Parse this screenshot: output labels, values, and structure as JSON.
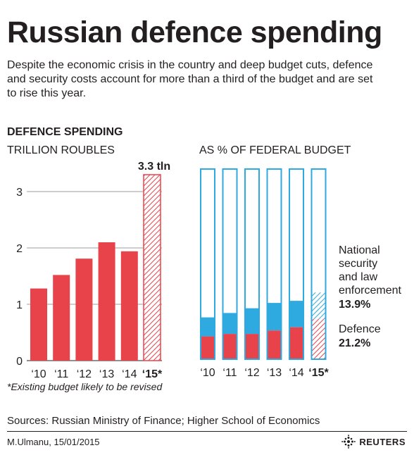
{
  "title": "Russian defence spending",
  "subtitle": "Despite the economic crisis in the country and deep budget cuts, defence and security costs account for more than a third of the budget and are set to rise this year.",
  "section_title": "DEFENCE SPENDING",
  "left_unit": "TRILLION ROUBLES",
  "right_unit": "AS % OF FEDERAL BUDGET",
  "footnote": "*Existing budget likely to be revised",
  "sources": "Sources:  Russian Ministry of Finance; Higher School of Economics",
  "byline": "M.Ulmanu, 15/01/2015",
  "logo_text": "REUTERS",
  "colors": {
    "defence": "#e8434b",
    "security": "#2eaae1",
    "outline": "#2eaae1",
    "text": "#231f20"
  },
  "chart_data": [
    {
      "type": "bar",
      "title": "TRILLION ROUBLES",
      "categories": [
        "‘10",
        "‘11",
        "‘12",
        "‘13",
        "‘14",
        "‘15*"
      ],
      "values": [
        1.28,
        1.52,
        1.81,
        2.1,
        1.94,
        3.3
      ],
      "projected": [
        false,
        false,
        false,
        false,
        false,
        true
      ],
      "annotation": "3.3 tln",
      "yticks": [
        0,
        1,
        2,
        3
      ],
      "ylim": [
        0,
        3.4
      ],
      "grid": true
    },
    {
      "type": "bar",
      "stacked": true,
      "title": "AS % OF FEDERAL BUDGET",
      "categories": [
        "‘10",
        "‘11",
        "‘12",
        "‘13",
        "‘14",
        "‘15*"
      ],
      "ylim": [
        0,
        100
      ],
      "series": [
        {
          "name": "Defence",
          "values": [
            12.0,
            13.3,
            13.3,
            15.1,
            16.8,
            21.2
          ]
        },
        {
          "name": "National security and law enforcement",
          "values": [
            10.0,
            11.0,
            13.5,
            14.5,
            13.9,
            13.9
          ]
        }
      ],
      "legend": [
        {
          "series": 1,
          "lines": [
            "National",
            "security",
            "and law",
            "enforcement"
          ],
          "value": "13.9%"
        },
        {
          "series": 0,
          "lines": [
            "Defence"
          ],
          "value": "21.2%"
        }
      ]
    }
  ]
}
